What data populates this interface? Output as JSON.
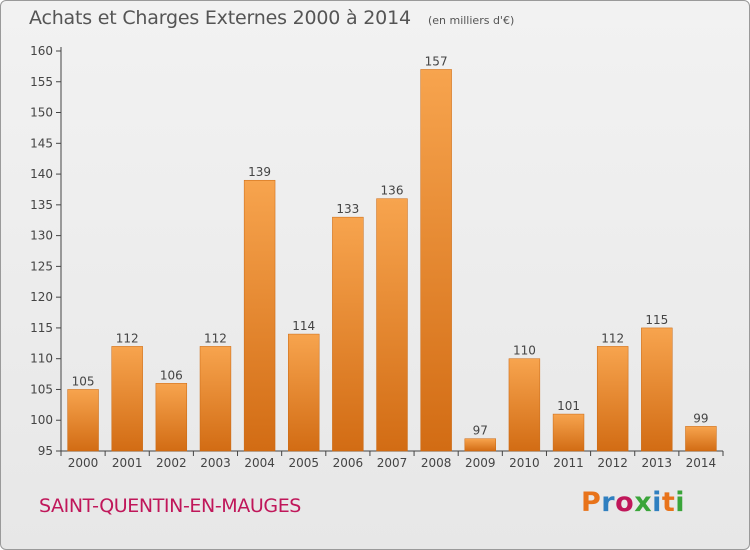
{
  "header": {
    "title": "Achats et Charges Externes 2000 à 2014",
    "unit": "(en milliers d'€)"
  },
  "footer": {
    "commune": "SAINT-QUENTIN-EN-MAUGES",
    "logo": "Proxiti",
    "logo_colors": [
      "#e8731a",
      "#2f7fc0",
      "#c0175a",
      "#3aa53a",
      "#2f7fc0",
      "#e8731a",
      "#3aa53a"
    ]
  },
  "colors": {
    "bar_light": "#f7a44e",
    "bar_dark": "#d26c14",
    "axis": "#444444",
    "grid_tick": "#444444",
    "text": "#444444"
  },
  "chart_data": {
    "type": "bar",
    "title": "Achats et Charges Externes 2000 à 2014",
    "subtitle": "(en milliers d'€)",
    "xlabel": "",
    "ylabel": "",
    "categories": [
      "2000",
      "2001",
      "2002",
      "2003",
      "2004",
      "2005",
      "2006",
      "2007",
      "2008",
      "2009",
      "2010",
      "2011",
      "2012",
      "2013",
      "2014"
    ],
    "values": [
      105,
      112,
      106,
      112,
      139,
      114,
      133,
      136,
      157,
      97,
      110,
      101,
      112,
      115,
      99
    ],
    "ylim": [
      95,
      160
    ],
    "yticks": [
      95,
      100,
      105,
      110,
      115,
      120,
      125,
      130,
      135,
      140,
      145,
      150,
      155,
      160
    ],
    "grid": false,
    "legend": "none"
  }
}
